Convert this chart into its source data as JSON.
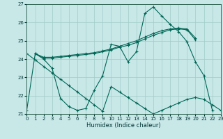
{
  "xlabel": "Humidex (Indice chaleur)",
  "xlim": [
    0,
    23
  ],
  "ylim": [
    21,
    27
  ],
  "yticks": [
    21,
    22,
    23,
    24,
    25,
    26,
    27
  ],
  "xticks": [
    0,
    1,
    2,
    3,
    4,
    5,
    6,
    7,
    8,
    9,
    10,
    11,
    12,
    13,
    14,
    15,
    16,
    17,
    18,
    19,
    20,
    21,
    22,
    23
  ],
  "bg_color": "#c8e8e8",
  "grid_color": "#a0ccc8",
  "line_color": "#006655",
  "lines": [
    {
      "x": [
        0,
        1,
        2,
        3,
        4,
        5,
        6,
        7,
        8,
        9,
        10,
        11,
        12,
        13,
        14,
        15,
        16,
        17,
        18,
        19,
        20,
        21,
        22
      ],
      "y": [
        21.2,
        24.3,
        24.0,
        23.5,
        21.85,
        21.4,
        21.2,
        21.3,
        22.3,
        23.1,
        24.8,
        24.7,
        23.85,
        24.4,
        26.5,
        26.85,
        26.35,
        25.9,
        25.5,
        24.95,
        23.85,
        23.1,
        21.2
      ]
    },
    {
      "x": [
        0,
        1,
        2,
        3,
        4,
        5,
        6,
        7,
        8,
        9,
        10,
        11,
        12,
        13,
        14,
        15,
        16,
        17,
        18,
        19,
        20,
        21,
        22,
        23
      ],
      "y": [
        24.3,
        23.95,
        23.6,
        23.25,
        22.9,
        22.55,
        22.2,
        21.85,
        21.5,
        21.15,
        22.5,
        22.2,
        21.9,
        21.6,
        21.3,
        21.0,
        21.2,
        21.4,
        21.6,
        21.8,
        21.9,
        21.8,
        21.5,
        21.2
      ]
    },
    {
      "x": [
        1,
        2,
        3,
        4,
        5,
        6,
        7,
        8,
        9,
        10,
        11,
        12,
        13,
        14,
        15,
        16,
        17,
        18,
        19,
        20
      ],
      "y": [
        24.3,
        24.05,
        24.05,
        24.1,
        24.15,
        24.2,
        24.25,
        24.3,
        24.4,
        24.5,
        24.65,
        24.75,
        24.9,
        25.1,
        25.3,
        25.45,
        25.6,
        25.65,
        25.6,
        25.05
      ]
    },
    {
      "x": [
        1,
        2,
        3,
        4,
        5,
        6,
        7,
        8,
        9,
        10,
        11,
        12,
        13,
        14,
        15,
        16,
        17,
        18,
        19,
        20
      ],
      "y": [
        24.3,
        24.1,
        24.1,
        24.15,
        24.2,
        24.25,
        24.3,
        24.35,
        24.45,
        24.55,
        24.7,
        24.85,
        25.0,
        25.2,
        25.4,
        25.55,
        25.65,
        25.7,
        25.65,
        25.15
      ]
    }
  ]
}
